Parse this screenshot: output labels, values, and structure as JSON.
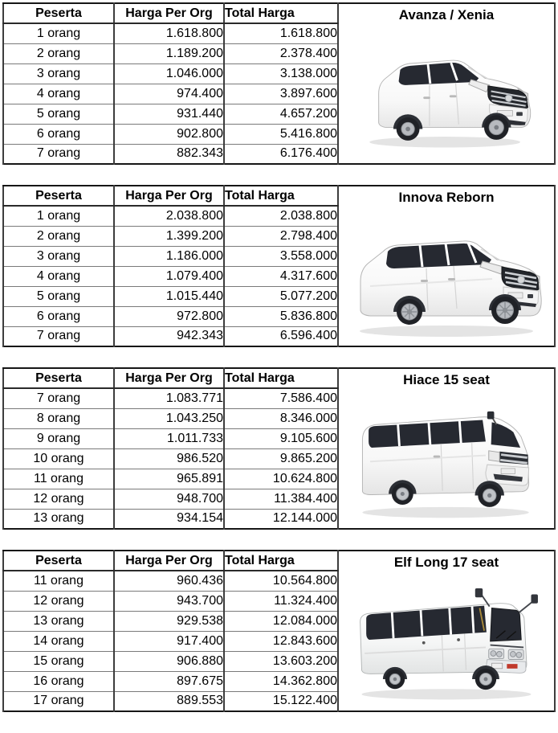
{
  "columns": {
    "peserta": "Peserta",
    "harga_per_org": "Harga Per Org",
    "total_harga": "Total Harga"
  },
  "tables": [
    {
      "vehicle": "Avanza / Xenia",
      "rows": [
        {
          "peserta": "1 orang",
          "harga_per_org": "1.618.800",
          "total_harga": "1.618.800"
        },
        {
          "peserta": "2 orang",
          "harga_per_org": "1.189.200",
          "total_harga": "2.378.400"
        },
        {
          "peserta": "3 orang",
          "harga_per_org": "1.046.000",
          "total_harga": "3.138.000"
        },
        {
          "peserta": "4 orang",
          "harga_per_org": "974.400",
          "total_harga": "3.897.600"
        },
        {
          "peserta": "5 orang",
          "harga_per_org": "931.440",
          "total_harga": "4.657.200"
        },
        {
          "peserta": "6 orang",
          "harga_per_org": "902.800",
          "total_harga": "5.416.800"
        },
        {
          "peserta": "7 orang",
          "harga_per_org": "882.343",
          "total_harga": "6.176.400"
        }
      ]
    },
    {
      "vehicle": "Innova Reborn",
      "rows": [
        {
          "peserta": "1 orang",
          "harga_per_org": "2.038.800",
          "total_harga": "2.038.800"
        },
        {
          "peserta": "2 orang",
          "harga_per_org": "1.399.200",
          "total_harga": "2.798.400"
        },
        {
          "peserta": "3 orang",
          "harga_per_org": "1.186.000",
          "total_harga": "3.558.000"
        },
        {
          "peserta": "4 orang",
          "harga_per_org": "1.079.400",
          "total_harga": "4.317.600"
        },
        {
          "peserta": "5 orang",
          "harga_per_org": "1.015.440",
          "total_harga": "5.077.200"
        },
        {
          "peserta": "6 orang",
          "harga_per_org": "972.800",
          "total_harga": "5.836.800"
        },
        {
          "peserta": "7 orang",
          "harga_per_org": "942.343",
          "total_harga": "6.596.400"
        }
      ]
    },
    {
      "vehicle": "Hiace 15 seat",
      "rows": [
        {
          "peserta": "7 orang",
          "harga_per_org": "1.083.771",
          "total_harga": "7.586.400"
        },
        {
          "peserta": "8 orang",
          "harga_per_org": "1.043.250",
          "total_harga": "8.346.000"
        },
        {
          "peserta": "9 orang",
          "harga_per_org": "1.011.733",
          "total_harga": "9.105.600"
        },
        {
          "peserta": "10 orang",
          "harga_per_org": "986.520",
          "total_harga": "9.865.200"
        },
        {
          "peserta": "11 orang",
          "harga_per_org": "965.891",
          "total_harga": "10.624.800"
        },
        {
          "peserta": "12 orang",
          "harga_per_org": "948.700",
          "total_harga": "11.384.400"
        },
        {
          "peserta": "13 orang",
          "harga_per_org": "934.154",
          "total_harga": "12.144.000"
        }
      ]
    },
    {
      "vehicle": "Elf Long 17 seat",
      "rows": [
        {
          "peserta": "11 orang",
          "harga_per_org": "960.436",
          "total_harga": "10.564.800"
        },
        {
          "peserta": "12 orang",
          "harga_per_org": "943.700",
          "total_harga": "11.324.400"
        },
        {
          "peserta": "13 orang",
          "harga_per_org": "929.538",
          "total_harga": "12.084.000"
        },
        {
          "peserta": "14 orang",
          "harga_per_org": "917.400",
          "total_harga": "12.843.600"
        },
        {
          "peserta": "15 orang",
          "harga_per_org": "906.880",
          "total_harga": "13.603.200"
        },
        {
          "peserta": "16 orang",
          "harga_per_org": "897.675",
          "total_harga": "14.362.800"
        },
        {
          "peserta": "17 orang",
          "harga_per_org": "889.553",
          "total_harga": "15.122.400"
        }
      ]
    }
  ]
}
